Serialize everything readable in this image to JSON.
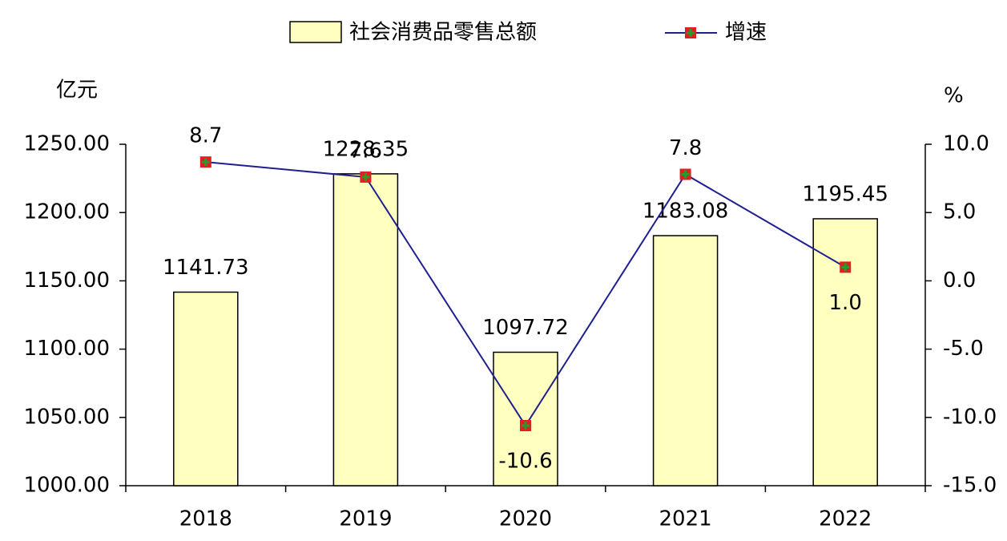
{
  "chart_data": {
    "type": "bar",
    "categories": [
      "2018",
      "2019",
      "2020",
      "2021",
      "2022"
    ],
    "series": [
      {
        "name": "社会消费品零售总额",
        "type": "bar",
        "color": "#ffffc0",
        "values": [
          1141.73,
          1228.35,
          1097.72,
          1183.08,
          1195.45
        ]
      },
      {
        "name": "增速",
        "type": "line",
        "axis": "y2",
        "color": "#1f1f8f",
        "marker_color": "#e02020",
        "values": [
          8.7,
          7.6,
          -10.6,
          7.8,
          1.0
        ],
        "value_labels": [
          "8.7",
          "7.6",
          "-10.6",
          "7.8",
          "1.0"
        ]
      }
    ],
    "y_label": "亿元",
    "y2_label": "%",
    "ylim": [
      1000,
      1250
    ],
    "yticks": [
      {
        "value": 1000,
        "label": "1000.00"
      },
      {
        "value": 1050,
        "label": "1050.00"
      },
      {
        "value": 1100,
        "label": "1100.00"
      },
      {
        "value": 1150,
        "label": "1150.00"
      },
      {
        "value": 1200,
        "label": "1200.00"
      },
      {
        "value": 1250,
        "label": "1250.00"
      }
    ],
    "y2lim": [
      -15,
      10
    ],
    "y2ticks": [
      {
        "value": -15,
        "label": "-15.0"
      },
      {
        "value": -10,
        "label": "-10.0"
      },
      {
        "value": -5,
        "label": "-5.0"
      },
      {
        "value": 0,
        "label": "0.0"
      },
      {
        "value": 5,
        "label": "5.0"
      },
      {
        "value": 10,
        "label": "10.0"
      }
    ],
    "legend": "top"
  }
}
